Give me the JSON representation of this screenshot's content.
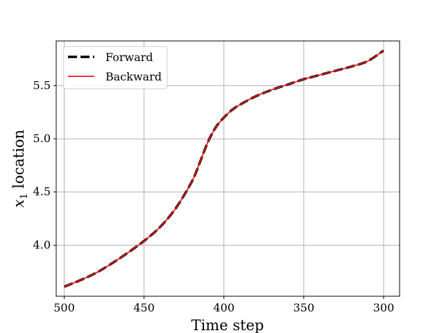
{
  "chart_data": {
    "type": "line",
    "title": "",
    "xlabel": "Time step",
    "ylabel_var": "x",
    "ylabel_sub": "1",
    "ylabel_rest": " location",
    "x_inverted": true,
    "xlim": [
      505,
      290
    ],
    "ylim": [
      3.52,
      5.92
    ],
    "xticks": [
      500,
      450,
      400,
      350,
      300
    ],
    "xtick_labels": [
      "500",
      "450",
      "400",
      "350",
      "300"
    ],
    "yticks": [
      4.0,
      4.5,
      5.0,
      5.5
    ],
    "ytick_labels": [
      "4.0",
      "4.5",
      "5.0",
      "5.5"
    ],
    "grid": true,
    "legend_position": "top-left",
    "series": [
      {
        "name": "Forward",
        "color": "#000000",
        "style": "dashed",
        "x": [
          500,
          490,
          480,
          470,
          460,
          450,
          440,
          430,
          420,
          415,
          410,
          405,
          400,
          395,
          390,
          380,
          370,
          360,
          350,
          340,
          330,
          320,
          310,
          300
        ],
        "y": [
          3.61,
          3.67,
          3.74,
          3.83,
          3.93,
          4.04,
          4.17,
          4.35,
          4.6,
          4.78,
          4.97,
          5.11,
          5.2,
          5.27,
          5.32,
          5.4,
          5.46,
          5.51,
          5.56,
          5.6,
          5.64,
          5.68,
          5.73,
          5.83
        ]
      },
      {
        "name": "Backward",
        "color": "#e31a1c",
        "style": "solid",
        "x": [
          500,
          490,
          480,
          470,
          460,
          450,
          440,
          430,
          420,
          415,
          410,
          405,
          400,
          395,
          390,
          380,
          370,
          360,
          350,
          340,
          330,
          320,
          310,
          300
        ],
        "y": [
          3.61,
          3.67,
          3.74,
          3.83,
          3.93,
          4.04,
          4.17,
          4.35,
          4.6,
          4.78,
          4.97,
          5.11,
          5.2,
          5.27,
          5.32,
          5.4,
          5.46,
          5.51,
          5.56,
          5.6,
          5.64,
          5.68,
          5.73,
          5.83
        ]
      }
    ]
  }
}
